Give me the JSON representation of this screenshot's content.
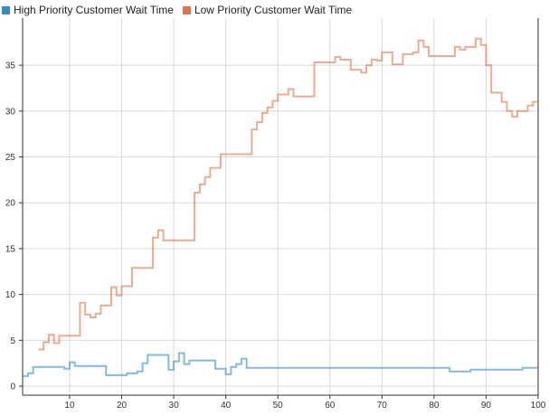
{
  "chart_data": {
    "type": "line",
    "step": true,
    "title": "",
    "xlabel": "",
    "ylabel": "",
    "xlim": [
      1,
      100
    ],
    "ylim": [
      -1,
      40
    ],
    "xticks": [
      10,
      20,
      30,
      40,
      50,
      60,
      70,
      80,
      90,
      100
    ],
    "yticks": [
      0,
      5,
      10,
      15,
      20,
      25,
      30,
      35
    ],
    "grid": true,
    "legend": "top-left",
    "series": [
      {
        "name": "High Priority Customer Wait Time",
        "color": "#2f8ccc",
        "x": [
          1,
          2,
          3,
          9,
          10,
          11,
          17,
          21,
          23,
          24,
          25,
          29,
          30,
          31,
          32,
          33,
          38,
          40,
          41,
          42,
          43,
          44,
          83,
          87,
          97,
          100
        ],
        "y": [
          1.1,
          1.4,
          2.1,
          1.9,
          2.6,
          2.2,
          1.2,
          1.4,
          1.6,
          2.5,
          3.4,
          1.8,
          2.7,
          3.6,
          2.4,
          2.8,
          1.9,
          1.3,
          2.1,
          2.4,
          3.0,
          2.0,
          1.6,
          1.8,
          2.0,
          2.0
        ]
      },
      {
        "name": "Low Priority Customer Wait Time",
        "color": "#e0734a",
        "x": [
          4,
          5,
          6,
          7,
          8,
          12,
          13,
          14,
          15,
          16,
          18,
          19,
          20,
          22,
          26,
          27,
          28,
          34,
          35,
          36,
          37,
          39,
          45,
          46,
          47,
          48,
          49,
          50,
          52,
          53,
          57,
          61,
          62,
          64,
          66,
          67,
          68,
          69,
          70,
          72,
          74,
          76,
          77,
          78,
          79,
          84,
          85,
          86,
          88,
          89,
          90,
          91,
          93,
          94,
          95,
          96,
          98,
          99,
          100
        ],
        "y": [
          4.0,
          4.8,
          5.6,
          4.7,
          5.5,
          9.1,
          7.8,
          7.5,
          7.9,
          8.8,
          10.8,
          9.9,
          10.9,
          12.9,
          16.2,
          17.0,
          15.9,
          21.1,
          22.0,
          22.8,
          23.8,
          25.3,
          28.0,
          28.8,
          29.8,
          30.4,
          31.1,
          31.8,
          32.4,
          31.6,
          35.3,
          35.9,
          35.6,
          34.5,
          34.2,
          35.0,
          35.6,
          35.5,
          36.4,
          35.1,
          36.2,
          36.4,
          37.7,
          37.0,
          36.0,
          37.0,
          36.7,
          37.0,
          37.9,
          37.2,
          35.0,
          32.0,
          31.0,
          30.0,
          29.4,
          30.0,
          30.6,
          31.0,
          31.0
        ]
      }
    ]
  }
}
